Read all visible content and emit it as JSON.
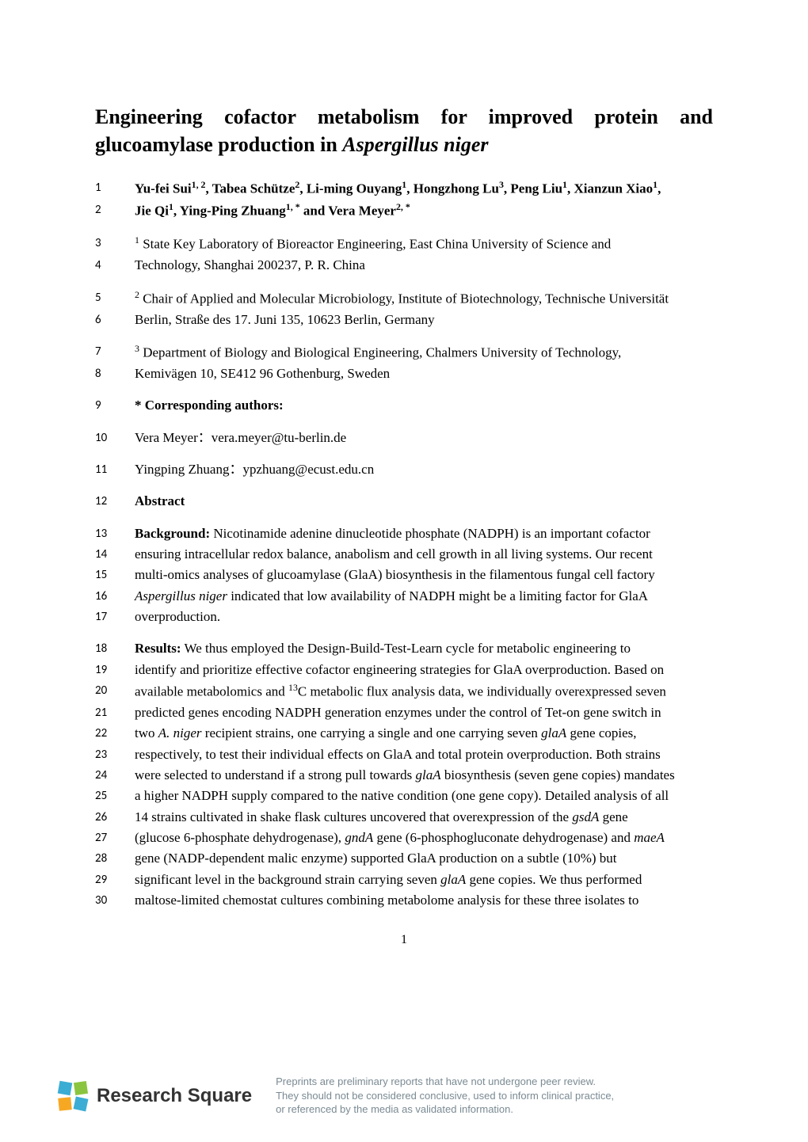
{
  "typography": {
    "body_font": "Times New Roman",
    "linenum_font": "Calibri",
    "footer_font": "Arial",
    "title_fontsize": 26,
    "body_fontsize": 17,
    "linenum_fontsize": 15,
    "logo_fontsize": 24,
    "disclaimer_fontsize": 13,
    "text_color": "#000000",
    "disclaimer_color": "#7a8a93",
    "background_color": "#ffffff"
  },
  "title_part1": "Engineering cofactor metabolism for improved protein and glucoamylase production in ",
  "title_italic": "Aspergillus niger",
  "lines": {
    "l1": {
      "num": "1",
      "html": "Yu-fei Sui<sup>1, 2</sup>, Tabea Schütze<sup>2</sup>, Li-ming Ouyang<sup>1</sup>, Hongzhong Lu<sup>3</sup>, Peng Liu<sup>1</sup>, Xianzun Xiao<sup>1</sup>,"
    },
    "l2": {
      "num": "2",
      "html": "Jie Qi<sup>1</sup>, Ying-Ping Zhuang<sup>1, *</sup> and Vera Meyer<sup>2, *</sup>"
    },
    "l3": {
      "num": "3",
      "html": "<sup>1</sup> State Key Laboratory of Bioreactor Engineering, East China University of Science and"
    },
    "l4": {
      "num": "4",
      "html": "Technology, Shanghai 200237, P. R. China"
    },
    "l5": {
      "num": "5",
      "html": "<sup>2</sup> Chair of Applied and Molecular Microbiology, Institute of Biotechnology, Technische Universität"
    },
    "l6": {
      "num": "6",
      "html": "Berlin, Straße des 17. Juni 135, 10623 Berlin, Germany"
    },
    "l7": {
      "num": "7",
      "html": "<sup>3</sup> Department of Biology and Biological Engineering, Chalmers University of Technology,"
    },
    "l8": {
      "num": "8",
      "html": "Kemivägen 10, SE412 96 Gothenburg, Sweden"
    },
    "l9": {
      "num": "9",
      "html": "* Corresponding authors:"
    },
    "l10": {
      "num": "10",
      "html": "Vera Meyer：vera.meyer@tu-berlin.de"
    },
    "l11": {
      "num": "11",
      "html": "Yingping Zhuang：ypzhuang@ecust.edu.cn"
    },
    "l12": {
      "num": "12",
      "html": "Abstract"
    },
    "l13": {
      "num": "13",
      "html": "<span class='bold'>Background:</span> Nicotinamide adenine dinucleotide phosphate (NADPH) is an important cofactor"
    },
    "l14": {
      "num": "14",
      "html": "ensuring intracellular redox balance, anabolism and cell growth in all living systems. Our recent"
    },
    "l15": {
      "num": "15",
      "html": "multi-omics analyses of glucoamylase (GlaA) biosynthesis in the filamentous fungal cell factory"
    },
    "l16": {
      "num": "16",
      "html": "<span class='italic'>Aspergillus niger</span> indicated that low availability of NADPH might be a limiting factor for GlaA"
    },
    "l17": {
      "num": "17",
      "html": "overproduction."
    },
    "l18": {
      "num": "18",
      "html": "<span class='bold'>Results:</span> We thus employed the Design-Build-Test-Learn cycle for metabolic engineering to"
    },
    "l19": {
      "num": "19",
      "html": "identify and prioritize effective cofactor engineering strategies for GlaA overproduction. Based on"
    },
    "l20": {
      "num": "20",
      "html": "available metabolomics and <sup>13</sup>C metabolic flux analysis data, we individually overexpressed seven"
    },
    "l21": {
      "num": "21",
      "html": "predicted genes encoding NADPH generation enzymes under the control of Tet-on gene switch in"
    },
    "l22": {
      "num": "22",
      "html": "two <span class='italic'>A. niger</span> recipient strains, one carrying a single and one carrying seven <span class='italic'>glaA</span> gene copies,"
    },
    "l23": {
      "num": "23",
      "html": "respectively, to test their individual effects on GlaA and total protein overproduction. Both strains"
    },
    "l24": {
      "num": "24",
      "html": "were selected to understand if a strong pull towards <span class='italic'>glaA</span> biosynthesis (seven gene copies) mandates"
    },
    "l25": {
      "num": "25",
      "html": "a higher NADPH supply compared to the native condition (one gene copy). Detailed analysis of all"
    },
    "l26": {
      "num": "26",
      "html": "14 strains cultivated in shake flask cultures uncovered that overexpression of the <span class='italic'>gsdA</span> gene"
    },
    "l27": {
      "num": "27",
      "html": "(glucose 6-phosphate dehydrogenase), <span class='italic'>gndA</span> gene (6-phosphogluconate dehydrogenase) and <span class='italic'>maeA</span>"
    },
    "l28": {
      "num": "28",
      "html": "gene (NADP-dependent malic enzyme) supported GlaA production on a subtle (10%) but"
    },
    "l29": {
      "num": "29",
      "html": "significant level in the background strain carrying seven <span class='italic'>glaA</span> gene copies. We thus performed"
    },
    "l30": {
      "num": "30",
      "html": "maltose-limited chemostat cultures combining metabolome analysis for these three isolates to"
    }
  },
  "page_number": "1",
  "logo": {
    "text": "Research Square",
    "colors": [
      "#3badd4",
      "#8bc53f",
      "#f7a823",
      "#3badd4"
    ]
  },
  "disclaimer": {
    "line1": "Preprints are preliminary reports that have not undergone peer review.",
    "line2": "They should not be considered conclusive, used to inform clinical practice,",
    "line3": "or referenced by the media as validated information."
  }
}
